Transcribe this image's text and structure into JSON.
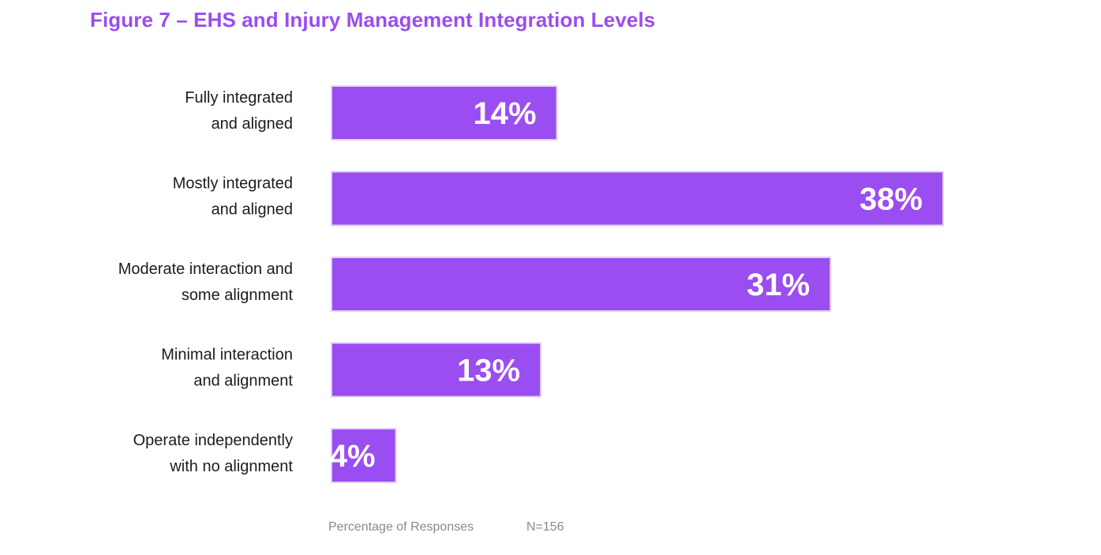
{
  "title": "Figure 7 – EHS and Injury Management Integration Levels",
  "footer": {
    "axis_note": "Percentage of Responses",
    "sample_size": "N=156"
  },
  "colors": {
    "accent": "#9a4df0",
    "bar": "#9a4df0",
    "bar_border": "#e3cff8",
    "label_text": "#1c1c1c",
    "value_text": "#ffffff",
    "footer_text": "#8a8a8a"
  },
  "chart_data": {
    "type": "bar",
    "orientation": "horizontal",
    "title": "Figure 7 – EHS and Injury Management Integration Levels",
    "xlabel": "Percentage of Responses",
    "ylabel": "",
    "categories": [
      [
        "Fully integrated",
        "and aligned"
      ],
      [
        "Mostly integrated",
        "and aligned"
      ],
      [
        "Moderate interaction and",
        "some alignment"
      ],
      [
        "Minimal interaction",
        "and alignment"
      ],
      [
        "Operate independently",
        "with no alignment"
      ]
    ],
    "values": [
      14,
      38,
      31,
      13,
      4
    ],
    "value_labels": [
      "14%",
      "38%",
      "31%",
      "13%",
      "4%"
    ],
    "unit": "%",
    "xlim": [
      0,
      38
    ],
    "grid": false,
    "legend": "none"
  }
}
